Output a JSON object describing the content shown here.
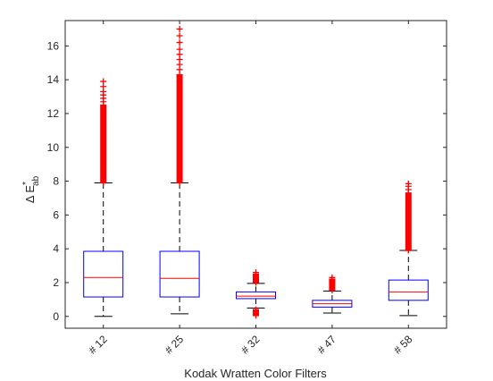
{
  "chart_data": {
    "type": "boxplot",
    "xlabel": "Kodak Wratten Color Filters",
    "ylabel": {
      "main": "Δ E",
      "superscript": "*",
      "subscript": "ab"
    },
    "ylim": [
      -0.7,
      17.5
    ],
    "yticks": [
      0,
      2,
      4,
      6,
      8,
      10,
      12,
      14,
      16
    ],
    "grid": false,
    "legend": "none",
    "colors": {
      "box": "#0000ff",
      "median": "#ff0000",
      "whisker": "#000000",
      "outlier": "#ff0000",
      "axis": "#262626"
    },
    "categories": [
      "# 12",
      "# 25",
      "# 32",
      "# 47",
      "# 58"
    ],
    "boxes": [
      {
        "label": "# 12",
        "min": 0.0,
        "q1": 1.15,
        "median": 2.3,
        "q3": 3.85,
        "max": 7.9,
        "outliers_from": 7.9,
        "outliers_to": 12.5,
        "sparse_outliers": [
          12.7,
          12.9,
          13.1,
          13.3,
          13.6,
          13.9
        ],
        "outliers_low": []
      },
      {
        "label": "# 25",
        "min": 0.15,
        "q1": 1.15,
        "median": 2.25,
        "q3": 3.85,
        "max": 7.9,
        "outliers_from": 7.9,
        "outliers_to": 14.3,
        "sparse_outliers": [
          14.6,
          14.9,
          15.2,
          15.5,
          15.8,
          16.2,
          16.6,
          17.0
        ],
        "outliers_low": []
      },
      {
        "label": "# 32",
        "min": 0.5,
        "q1": 1.05,
        "median": 1.2,
        "q3": 1.45,
        "max": 1.95,
        "outliers_from": 2.0,
        "outliers_to": 2.5,
        "sparse_outliers": [
          2.6
        ],
        "outliers_low": [
          0.05,
          0.15,
          0.25,
          0.4
        ]
      },
      {
        "label": "# 47",
        "min": 0.2,
        "q1": 0.55,
        "median": 0.75,
        "q3": 0.95,
        "max": 1.5,
        "outliers_from": 1.55,
        "outliers_to": 2.2,
        "sparse_outliers": [
          2.3
        ],
        "outliers_low": []
      },
      {
        "label": "# 58",
        "min": 0.05,
        "q1": 0.95,
        "median": 1.45,
        "q3": 2.15,
        "max": 3.9,
        "outliers_from": 3.9,
        "outliers_to": 7.3,
        "sparse_outliers": [
          7.5,
          7.7,
          7.85
        ],
        "outliers_low": []
      }
    ]
  }
}
